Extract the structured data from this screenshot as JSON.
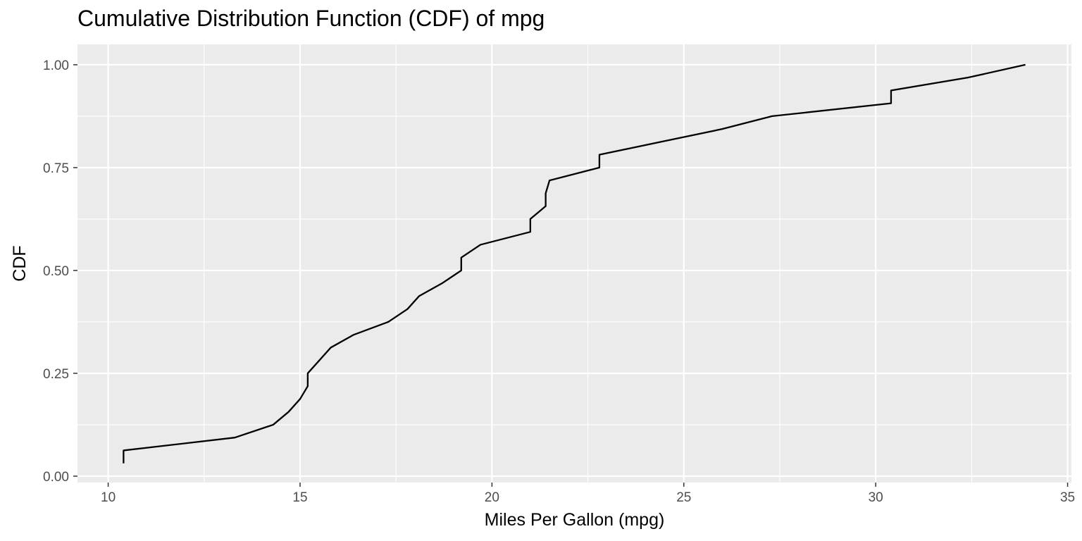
{
  "chart_data": {
    "type": "line",
    "title": "Cumulative Distribution Function (CDF) of mpg",
    "xlabel": "Miles Per Gallon (mpg)",
    "ylabel": "CDF",
    "xlim": [
      9.2,
      35.1
    ],
    "ylim": [
      -0.0155,
      1.0495
    ],
    "x_ticks": [
      10,
      15,
      20,
      25,
      30,
      35
    ],
    "x_tick_labels": [
      "10",
      "15",
      "20",
      "25",
      "30",
      "35"
    ],
    "y_ticks": [
      0,
      0.25,
      0.5,
      0.75,
      1
    ],
    "y_tick_labels": [
      "0.00",
      "0.25",
      "0.50",
      "0.75",
      "1.00"
    ],
    "grid": true,
    "background": "#ebebeb",
    "line_color": "#000000",
    "series": [
      {
        "x": [
          10.4,
          10.4,
          13.3,
          14.3,
          14.7,
          15.0,
          15.2,
          15.2,
          15.5,
          15.8,
          16.4,
          17.3,
          17.8,
          18.1,
          18.7,
          19.2,
          19.2,
          19.7,
          21.0,
          21.0,
          21.4,
          21.4,
          21.5,
          22.8,
          22.8,
          24.4,
          26.0,
          27.3,
          30.4,
          30.4,
          32.4,
          33.9
        ],
        "y": [
          0.03125,
          0.0625,
          0.09375,
          0.125,
          0.15625,
          0.1875,
          0.21875,
          0.25,
          0.28125,
          0.3125,
          0.34375,
          0.375,
          0.40625,
          0.4375,
          0.46875,
          0.5,
          0.53125,
          0.5625,
          0.59375,
          0.625,
          0.65625,
          0.6875,
          0.71875,
          0.75,
          0.78125,
          0.8125,
          0.84375,
          0.875,
          0.90625,
          0.9375,
          0.96875,
          1.0
        ]
      }
    ]
  }
}
